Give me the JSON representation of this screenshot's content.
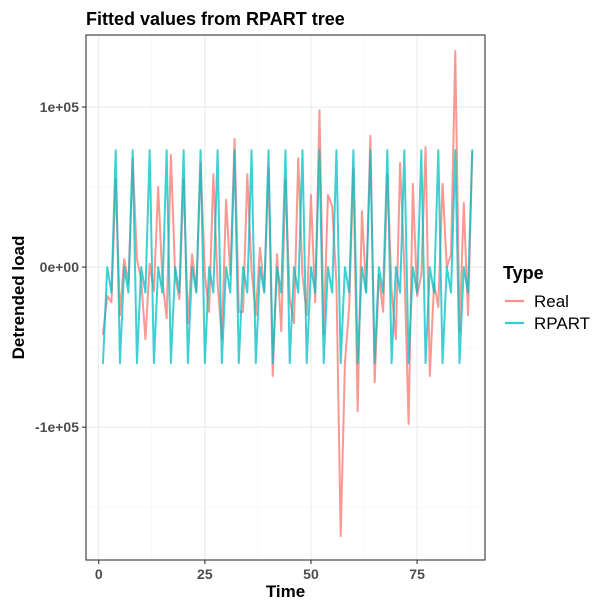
{
  "chart_data": {
    "type": "line",
    "title": "Fitted values from RPART tree",
    "xlabel": "Time",
    "ylabel": "Detrended load",
    "xlim": [
      -3,
      91
    ],
    "ylim": [
      -183000,
      145000
    ],
    "xticks": [
      0,
      25,
      50,
      75
    ],
    "xtick_labels": [
      "0",
      "25",
      "50",
      "75"
    ],
    "yticks": [
      -100000,
      0,
      100000
    ],
    "ytick_labels": [
      "-1e+05",
      "0e+00",
      "1e+05"
    ],
    "grid": true,
    "legend": {
      "title": "Type",
      "position": "right"
    },
    "series": [
      {
        "name": "Real",
        "color": "#F8766D",
        "x": [
          1,
          2,
          3,
          4,
          5,
          6,
          7,
          8,
          9,
          10,
          11,
          12,
          13,
          14,
          15,
          16,
          17,
          18,
          19,
          20,
          21,
          22,
          23,
          24,
          25,
          26,
          27,
          28,
          29,
          30,
          31,
          32,
          33,
          34,
          35,
          36,
          37,
          38,
          39,
          40,
          41,
          42,
          43,
          44,
          45,
          46,
          47,
          48,
          49,
          50,
          51,
          52,
          53,
          54,
          55,
          56,
          57,
          58,
          59,
          60,
          61,
          62,
          63,
          64,
          65,
          66,
          67,
          68,
          69,
          70,
          71,
          72,
          73,
          74,
          75,
          76,
          77,
          78,
          79,
          80,
          81,
          82,
          83,
          84,
          85,
          86,
          87,
          88
        ],
        "y": [
          -42000,
          -18000,
          -22000,
          55000,
          -30000,
          5000,
          -10000,
          68000,
          5000,
          -8000,
          -45000,
          2000,
          -15000,
          50000,
          -8000,
          -32000,
          70000,
          -5000,
          -20000,
          55000,
          -35000,
          8000,
          -15000,
          65000,
          -5000,
          -28000,
          58000,
          -10000,
          -45000,
          42000,
          -5000,
          80000,
          -28000,
          -28000,
          58000,
          -2000,
          -30000,
          12000,
          -15000,
          62000,
          -68000,
          8000,
          -40000,
          55000,
          -20000,
          -35000,
          68000,
          -5000,
          -30000,
          45000,
          -22000,
          98000,
          -42000,
          45000,
          38000,
          -10000,
          -168000,
          -60000,
          -25000,
          62000,
          -90000,
          35000,
          -15000,
          82000,
          -72000,
          -5000,
          -28000,
          58000,
          -15000,
          -45000,
          65000,
          0,
          -98000,
          52000,
          -18000,
          -5000,
          75000,
          -68000,
          -10000,
          -25000,
          52000,
          0,
          8000,
          135000,
          -40000,
          40000,
          -30000,
          72000
        ],
        "values_note": ""
      },
      {
        "name": "RPART",
        "color": "#00BFC4",
        "x": [
          1,
          2,
          3,
          4,
          5,
          6,
          7,
          8,
          9,
          10,
          11,
          12,
          13,
          14,
          15,
          16,
          17,
          18,
          19,
          20,
          21,
          22,
          23,
          24,
          25,
          26,
          27,
          28,
          29,
          30,
          31,
          32,
          33,
          34,
          35,
          36,
          37,
          38,
          39,
          40,
          41,
          42,
          43,
          44,
          45,
          46,
          47,
          48,
          49,
          50,
          51,
          52,
          53,
          54,
          55,
          56,
          57,
          58,
          59,
          60,
          61,
          62,
          63,
          64,
          65,
          66,
          67,
          68,
          69,
          70,
          71,
          72,
          73,
          74,
          75,
          76,
          77,
          78,
          79,
          80,
          81,
          82,
          83,
          84,
          85,
          86,
          87,
          88
        ],
        "y": [
          -60000,
          0,
          -16000,
          73000,
          -60000,
          0,
          -16000,
          73000,
          -60000,
          0,
          -16000,
          73000,
          -60000,
          0,
          -16000,
          73000,
          -60000,
          0,
          -16000,
          73000,
          -60000,
          0,
          -16000,
          73000,
          -60000,
          0,
          -16000,
          73000,
          -60000,
          0,
          -16000,
          73000,
          -60000,
          0,
          -16000,
          73000,
          -60000,
          0,
          -16000,
          73000,
          -60000,
          0,
          -16000,
          73000,
          -60000,
          0,
          -16000,
          73000,
          -60000,
          0,
          -16000,
          73000,
          -60000,
          0,
          -16000,
          73000,
          -60000,
          0,
          -16000,
          73000,
          -60000,
          0,
          -16000,
          73000,
          -60000,
          0,
          -16000,
          73000,
          -60000,
          0,
          -16000,
          73000,
          -60000,
          0,
          -16000,
          73000,
          -60000,
          0,
          -16000,
          73000,
          -60000,
          0,
          -16000,
          73000,
          -60000,
          0,
          -16000,
          73000
        ]
      }
    ]
  }
}
